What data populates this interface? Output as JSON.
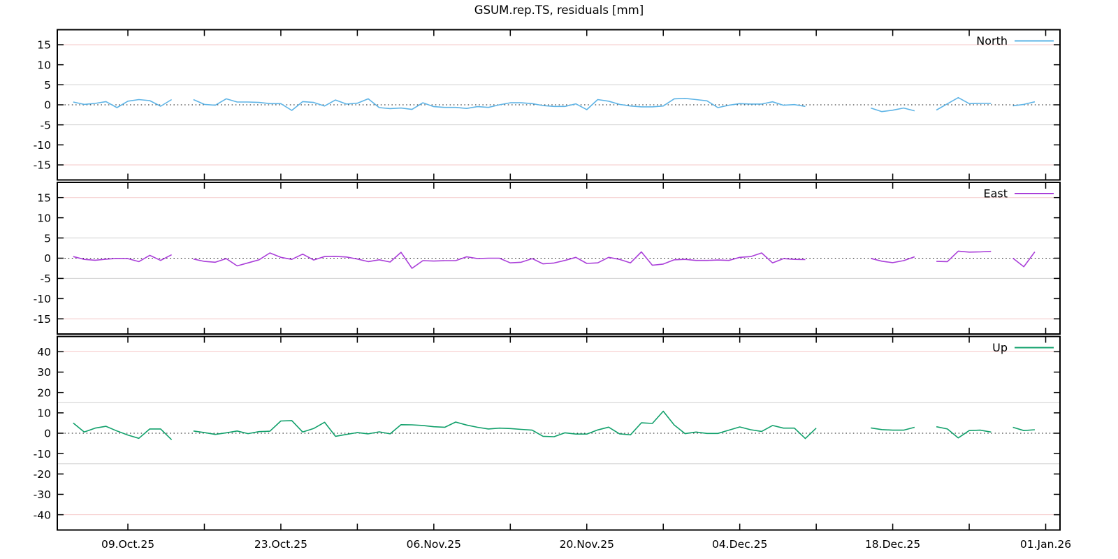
{
  "title": "GSUM.rep.TS, residuals [mm]",
  "colors": {
    "north_line": "#5eb4e6",
    "east_line": "#aa3fd9",
    "up_line": "#11a06b",
    "grid_red": "#f4c7c7",
    "grid_gray": "#cfcfcf",
    "zero_line": "#1a1a1a",
    "border": "#000000",
    "text": "#000000"
  },
  "chart_data": {
    "type": "line",
    "x_unit": "days relative to the 09.Oct.25 tick",
    "x_domain_days": [
      -6.46,
      85.31
    ],
    "x_tick_days": [
      0,
      14,
      28,
      42,
      56,
      70,
      84
    ],
    "x_tick_labels": [
      "09.Oct.25",
      "23.Oct.25",
      "06.Nov.25",
      "20.Nov.25",
      "04.Dec.25",
      "18.Dec.25",
      "01.Jan.26"
    ],
    "x_minor_tick_days": [
      7,
      21,
      35,
      49,
      63,
      77
    ],
    "series": [
      {
        "name": "North",
        "color": "#5eb4e6",
        "ylim": [
          -18.75,
          18.75
        ],
        "yticks": [
          -15,
          -10,
          -5,
          0,
          5,
          10,
          15
        ],
        "red_gridlines": [
          15,
          -15
        ],
        "gray_gridlines": [
          5,
          -5
        ],
        "x_start_day": -5,
        "values": [
          0.7,
          0.1,
          0.35,
          0.8,
          -0.7,
          0.9,
          1.3,
          1.05,
          -0.35,
          1.3,
          null,
          1.3,
          0.1,
          -0.1,
          1.5,
          0.7,
          0.7,
          0.6,
          0.3,
          0.3,
          -1.4,
          0.8,
          0.6,
          -0.3,
          1.2,
          0.2,
          0.4,
          1.5,
          -0.7,
          -0.95,
          -0.8,
          -1.15,
          0.5,
          -0.45,
          -0.65,
          -0.65,
          -0.9,
          -0.45,
          -0.65,
          0.0,
          0.5,
          0.5,
          0.3,
          -0.2,
          -0.4,
          -0.4,
          0.25,
          -1.2,
          1.3,
          0.9,
          0.1,
          -0.3,
          -0.5,
          -0.5,
          -0.3,
          1.5,
          1.6,
          1.3,
          1.0,
          -0.7,
          -0.1,
          0.3,
          0.2,
          0.2,
          0.75,
          -0.1,
          0.05,
          -0.4,
          null,
          null,
          null,
          null,
          null,
          -0.8,
          -1.7,
          -1.35,
          -0.8,
          -1.5,
          null,
          -1.3,
          0.25,
          1.8,
          0.3,
          0.35,
          0.35,
          null,
          -0.25,
          0.1,
          0.75
        ]
      },
      {
        "name": "East",
        "color": "#aa3fd9",
        "ylim": [
          -18.75,
          18.75
        ],
        "yticks": [
          -15,
          -10,
          -5,
          0,
          5,
          10,
          15
        ],
        "red_gridlines": [
          15,
          -15
        ],
        "gray_gridlines": [
          5,
          -5
        ],
        "x_start_day": -5,
        "values": [
          0.4,
          -0.3,
          -0.5,
          -0.25,
          -0.05,
          -0.1,
          -0.85,
          0.7,
          -0.55,
          0.85,
          null,
          -0.2,
          -0.8,
          -1.0,
          -0.1,
          -1.9,
          -1.15,
          -0.4,
          1.3,
          0.2,
          -0.3,
          1.0,
          -0.45,
          0.4,
          0.45,
          0.3,
          -0.2,
          -0.85,
          -0.4,
          -0.95,
          1.45,
          -2.5,
          -0.6,
          -0.7,
          -0.6,
          -0.6,
          0.35,
          -0.1,
          0.0,
          0.0,
          -1.15,
          -1.0,
          -0.1,
          -1.4,
          -1.2,
          -0.55,
          0.2,
          -1.3,
          -1.15,
          0.2,
          -0.3,
          -1.15,
          1.55,
          -1.75,
          -1.45,
          -0.4,
          -0.3,
          -0.55,
          -0.55,
          -0.45,
          -0.55,
          0.2,
          0.4,
          1.3,
          -1.15,
          -0.1,
          -0.3,
          -0.35,
          null,
          null,
          null,
          null,
          null,
          -0.05,
          -0.75,
          -1.1,
          -0.6,
          0.35,
          null,
          -0.8,
          -0.85,
          1.75,
          1.5,
          1.55,
          1.7,
          null,
          0.0,
          -2.1,
          1.55
        ]
      },
      {
        "name": "Up",
        "color": "#11a06b",
        "ylim": [
          -47.5,
          47.5
        ],
        "yticks": [
          -40,
          -30,
          -20,
          -10,
          0,
          10,
          20,
          30,
          40
        ],
        "red_gridlines": [
          40,
          -40
        ],
        "gray_gridlines": [
          15,
          -15
        ],
        "x_start_day": -5,
        "values": [
          5.0,
          0.6,
          2.5,
          3.4,
          1.1,
          -0.9,
          -2.5,
          2.1,
          2.1,
          -3.2,
          null,
          1.1,
          0.3,
          -0.6,
          0.2,
          1.1,
          -0.2,
          0.8,
          1.0,
          6.0,
          6.2,
          0.6,
          2.3,
          5.4,
          -1.5,
          -0.6,
          0.3,
          -0.3,
          0.7,
          -0.3,
          4.2,
          4.1,
          3.8,
          3.2,
          2.9,
          5.5,
          4.0,
          2.9,
          2.1,
          2.5,
          2.3,
          1.9,
          1.5,
          -1.5,
          -1.7,
          0.2,
          -0.4,
          -0.4,
          1.6,
          3.0,
          -0.3,
          -0.8,
          5.1,
          4.8,
          10.8,
          4.0,
          -0.2,
          0.6,
          -0.1,
          -0.1,
          1.5,
          3.1,
          1.7,
          0.9,
          3.8,
          2.5,
          2.5,
          -2.6,
          2.5,
          null,
          null,
          null,
          null,
          2.6,
          1.8,
          1.5,
          1.5,
          2.9,
          null,
          3.2,
          2.1,
          -2.3,
          1.3,
          1.5,
          0.6,
          null,
          2.9,
          1.3,
          1.7
        ]
      }
    ]
  }
}
